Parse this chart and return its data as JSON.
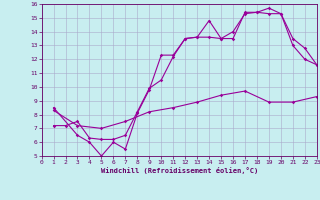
{
  "xlabel": "Windchill (Refroidissement éolien,°C)",
  "bg_color": "#c8eef0",
  "line_color": "#990099",
  "grid_color": "#aaaacc",
  "xlim": [
    0,
    23
  ],
  "ylim": [
    5,
    16
  ],
  "xticks": [
    0,
    1,
    2,
    3,
    4,
    5,
    6,
    7,
    8,
    9,
    10,
    11,
    12,
    13,
    14,
    15,
    16,
    17,
    18,
    19,
    20,
    21,
    22,
    23
  ],
  "yticks": [
    5,
    6,
    7,
    8,
    9,
    10,
    11,
    12,
    13,
    14,
    15,
    16
  ],
  "curve1_x": [
    1,
    3,
    4,
    5,
    6,
    7,
    8,
    9,
    10,
    11,
    12,
    13,
    14,
    15,
    16,
    17,
    18,
    19,
    20,
    21,
    22,
    23
  ],
  "curve1_y": [
    8.5,
    6.5,
    6.0,
    5.0,
    6.0,
    5.5,
    8.1,
    9.8,
    12.3,
    12.3,
    13.5,
    13.6,
    14.8,
    13.5,
    13.5,
    15.4,
    15.4,
    15.7,
    15.3,
    13.0,
    12.0,
    11.6
  ],
  "curve2_x": [
    1,
    2,
    3,
    4,
    5,
    6,
    7,
    8,
    9,
    10,
    11,
    12,
    13,
    14,
    15,
    16,
    17,
    18,
    19,
    20,
    21,
    22,
    23
  ],
  "curve2_y": [
    7.2,
    7.2,
    7.5,
    6.3,
    6.2,
    6.2,
    6.5,
    8.2,
    9.9,
    10.5,
    12.2,
    13.5,
    13.6,
    13.6,
    13.5,
    14.0,
    15.3,
    15.4,
    15.3,
    15.3,
    13.5,
    12.8,
    11.6
  ],
  "curve3_x": [
    1,
    3,
    5,
    7,
    9,
    11,
    13,
    15,
    17,
    19,
    21,
    23
  ],
  "curve3_y": [
    8.3,
    7.2,
    7.0,
    7.5,
    8.2,
    8.5,
    8.9,
    9.4,
    9.7,
    8.9,
    8.9,
    9.3
  ]
}
